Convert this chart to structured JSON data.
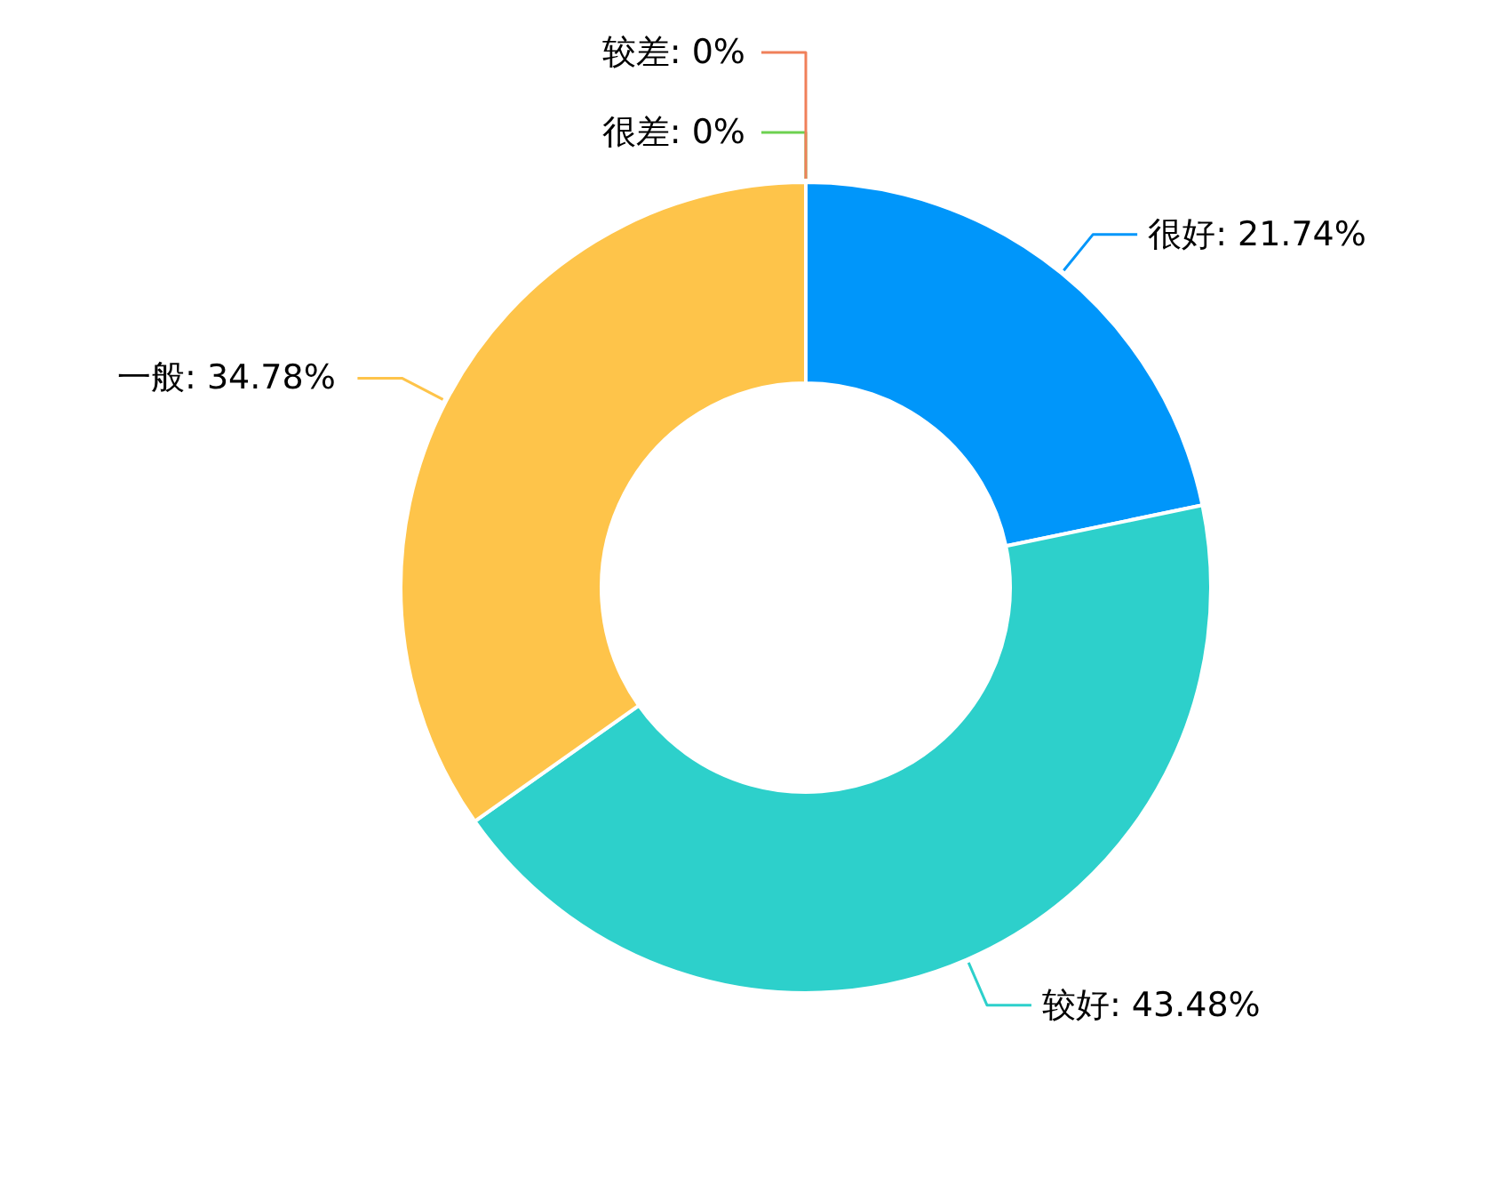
{
  "chart_data": {
    "type": "donut",
    "categories": [
      "很好",
      "较好",
      "一般",
      "很差",
      "较差"
    ],
    "values": [
      21.74,
      43.48,
      34.78,
      0,
      0
    ],
    "colors": [
      "#0096fa",
      "#2dd0cb",
      "#fec44a",
      "#6dd150",
      "#f0805a"
    ],
    "value_labels": [
      ": 21.74%",
      ": 43.48%",
      ": 34.78%",
      ": 0%",
      ": 0%"
    ]
  }
}
